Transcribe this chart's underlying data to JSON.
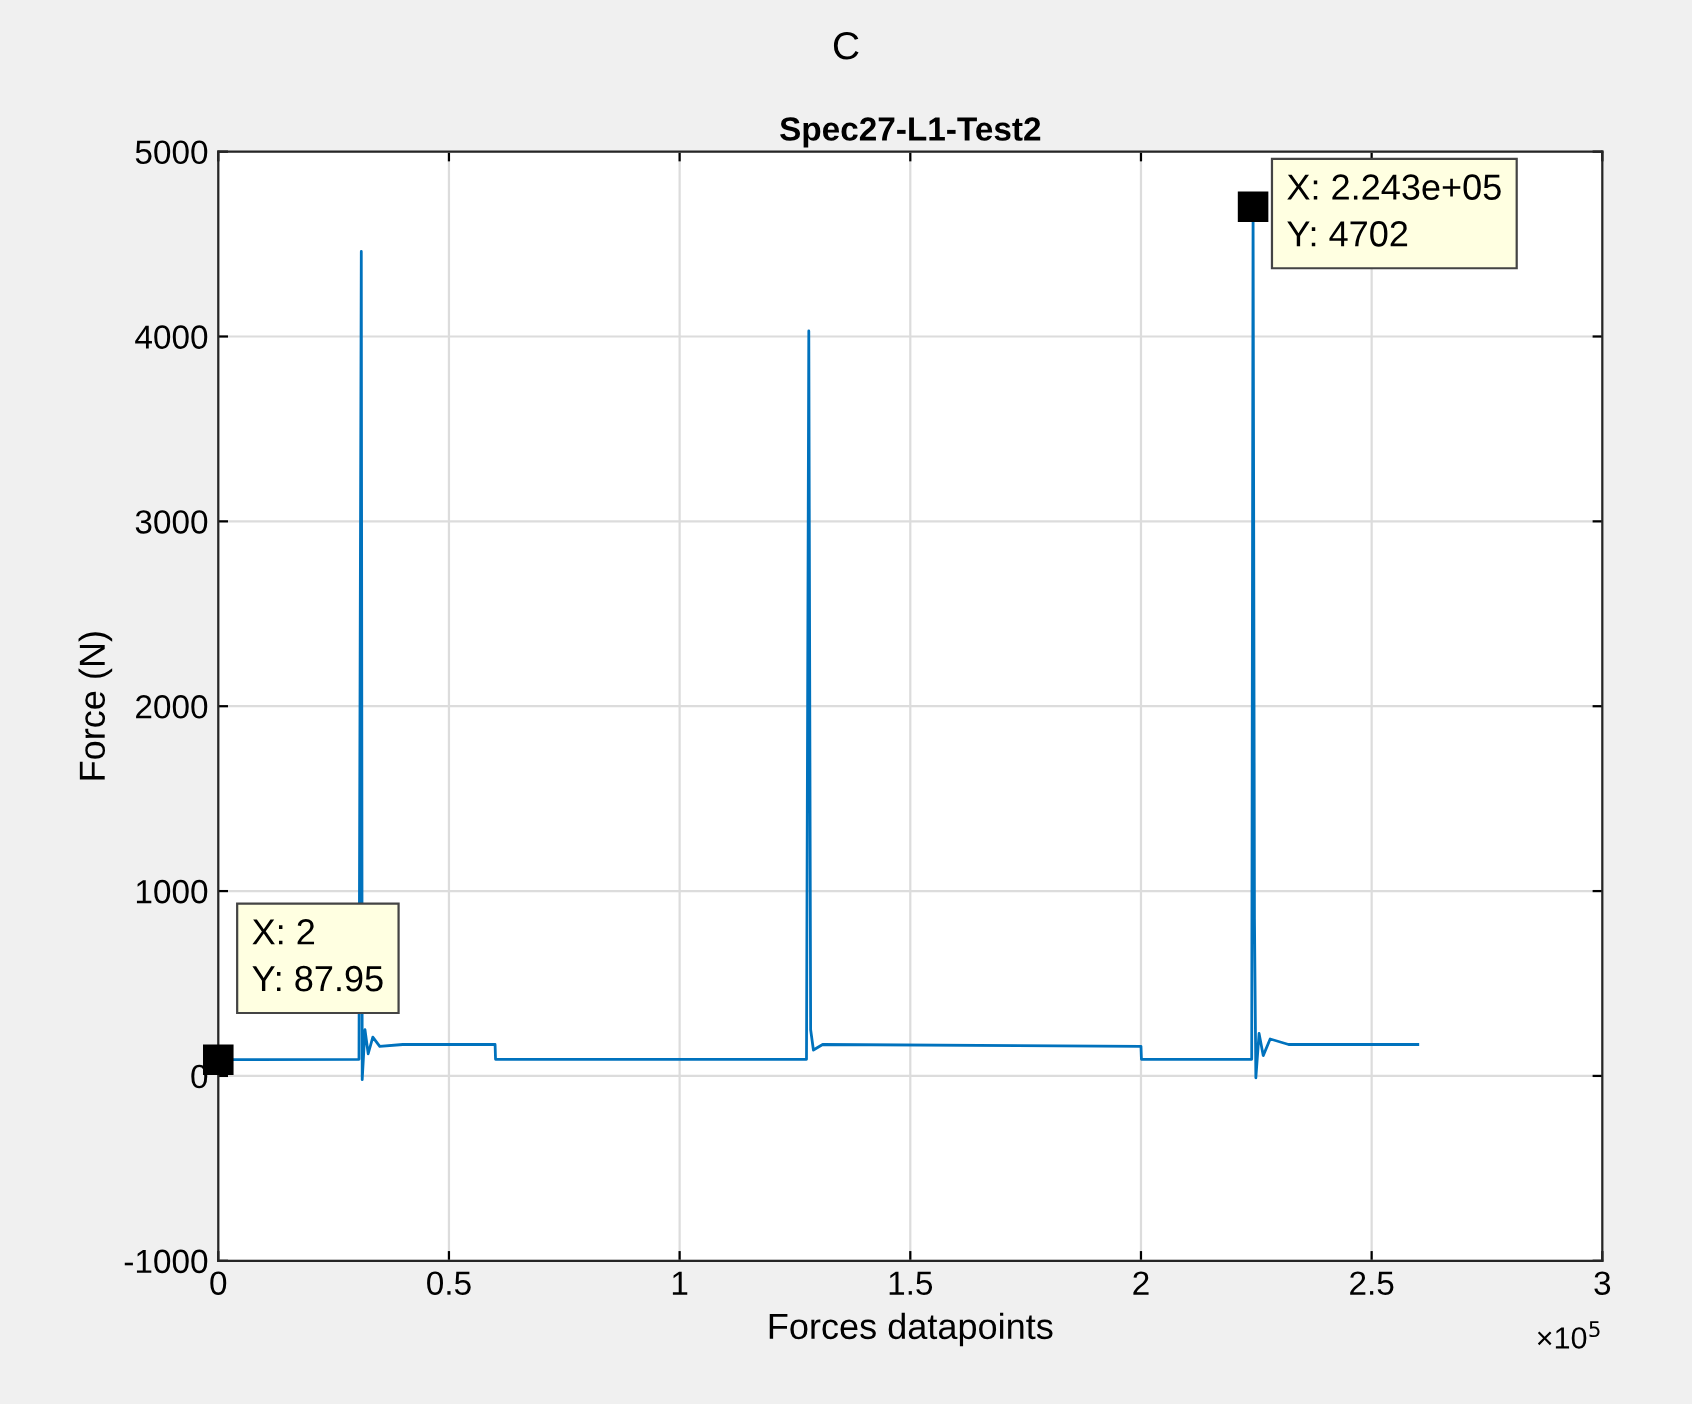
{
  "chart_data": {
    "type": "line",
    "title": "Spec27-L1-Test2",
    "xlabel": "Forces datapoints",
    "ylabel": "Force (N)",
    "annotations": [
      "C",
      "×10$^{5}$",
      {
        "text": "X: 2\nY: 87.95",
        "x": 2e-05,
        "y": 87.95
      },
      {
        "text": "X: 2.243e+05\nY: 4702",
        "x": 2.243,
        "y": 4702
      }
    ],
    "series": [
      {
        "color": "#0072bd",
        "x": [
          2e-05,
          0.305,
          0.31,
          0.312,
          0.318,
          0.325,
          0.335,
          0.35,
          0.4,
          0.6,
          0.601,
          1.275,
          1.28,
          1.284,
          1.29,
          1.31,
          2.0,
          2.001,
          2.24,
          2.243,
          2.246,
          2.249,
          2.256,
          2.265,
          2.28,
          2.32,
          2.6
        ],
        "values": [
          87.95,
          90,
          4460,
          -20,
          250,
          120,
          210,
          160,
          170,
          170,
          90,
          90,
          4030,
          250,
          140,
          170,
          160,
          90,
          90,
          4702,
          850,
          -10,
          230,
          110,
          200,
          170,
          170
        ]
      }
    ],
    "xlim": [
      0,
      3
    ],
    "xticks": [
      0,
      0.5,
      1,
      1.5,
      2,
      2.5,
      3
    ],
    "ylim": [
      -1000,
      5000
    ],
    "yticks": [
      -1000,
      0,
      1000,
      2000,
      3000,
      4000,
      5000
    ],
    "grid": true,
    "line_style": "solid",
    "marker": "none"
  }
}
